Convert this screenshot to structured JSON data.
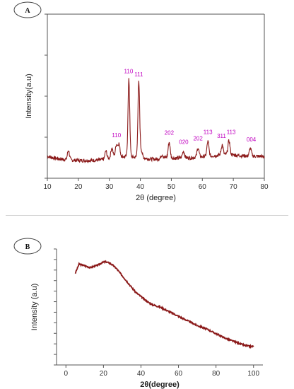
{
  "colors": {
    "series": "#8b1a1a",
    "peak_labels": "#c000c0",
    "axis": "#555555"
  },
  "chart_data": [
    {
      "panel": "A",
      "type": "line",
      "xlabel": "2θ (degree)",
      "ylabel": "Intensity(a.u)",
      "xlim": [
        10,
        80
      ],
      "ylim": [
        0,
        100
      ],
      "xticks": [
        10,
        20,
        30,
        40,
        50,
        60,
        70,
        80
      ],
      "grid": false,
      "baseline": [
        [
          10,
          13.4
        ],
        [
          12,
          12.4
        ],
        [
          14,
          11.8
        ],
        [
          16,
          11.3
        ],
        [
          17,
          11.2
        ],
        [
          18,
          11.0
        ],
        [
          20,
          10.9
        ],
        [
          22,
          10.8
        ],
        [
          24,
          10.8
        ],
        [
          26,
          11.0
        ],
        [
          28,
          11.4
        ],
        [
          29,
          11.6
        ],
        [
          30,
          12.2
        ],
        [
          32,
          13.8
        ],
        [
          33,
          14.0
        ],
        [
          34,
          13.4
        ],
        [
          35,
          13.2
        ],
        [
          36,
          13.4
        ],
        [
          37,
          13.0
        ],
        [
          38,
          12.8
        ],
        [
          39,
          13.0
        ],
        [
          40,
          13.6
        ],
        [
          41,
          12.6
        ],
        [
          42,
          12.0
        ],
        [
          44,
          11.6
        ],
        [
          46,
          11.8
        ],
        [
          48,
          12.6
        ],
        [
          50,
          12.4
        ],
        [
          52,
          12.2
        ],
        [
          54,
          12.6
        ],
        [
          56,
          12.4
        ],
        [
          58,
          12.8
        ],
        [
          60,
          13.2
        ],
        [
          62,
          13.4
        ],
        [
          64,
          13.8
        ],
        [
          66,
          14.2
        ],
        [
          68,
          14.6
        ],
        [
          70,
          14.2
        ],
        [
          72,
          13.8
        ],
        [
          74,
          13.6
        ],
        [
          76,
          13.6
        ],
        [
          78,
          13.4
        ],
        [
          80,
          13.2
        ]
      ],
      "peaks": [
        {
          "x": 16.8,
          "y": 17.0
        },
        {
          "x": 28.9,
          "y": 16.5
        },
        {
          "x": 30.8,
          "y": 18.5
        },
        {
          "x": 32.3,
          "y": 20.4
        },
        {
          "x": 33.1,
          "y": 21.0
        },
        {
          "x": 36.3,
          "y": 60.0
        },
        {
          "x": 39.5,
          "y": 58.3
        },
        {
          "x": 40.3,
          "y": 17.0
        },
        {
          "x": 47.0,
          "y": 14.5
        },
        {
          "x": 49.3,
          "y": 22.0
        },
        {
          "x": 53.9,
          "y": 16.5
        },
        {
          "x": 58.6,
          "y": 18.6
        },
        {
          "x": 61.8,
          "y": 22.4
        },
        {
          "x": 66.4,
          "y": 20.3
        },
        {
          "x": 68.6,
          "y": 23.0
        },
        {
          "x": 75.5,
          "y": 18.2
        }
      ],
      "annotations": [
        {
          "text": "110",
          "x": 32.3,
          "y": 25.0
        },
        {
          "text": "110",
          "x": 36.2,
          "y": 64.0
        },
        {
          "text": "111",
          "x": 39.5,
          "y": 62.0
        },
        {
          "text": "202",
          "x": 49.3,
          "y": 26.5
        },
        {
          "text": "020",
          "x": 54.0,
          "y": 21.0
        },
        {
          "text": "202",
          "x": 58.6,
          "y": 23.0
        },
        {
          "text": "113",
          "x": 61.8,
          "y": 27.0
        },
        {
          "text": "311",
          "x": 66.2,
          "y": 24.5
        },
        {
          "text": "113",
          "x": 69.3,
          "y": 27.0
        },
        {
          "text": "004",
          "x": 75.8,
          "y": 22.5
        }
      ]
    },
    {
      "panel": "B",
      "type": "line",
      "xlabel": "2θ(degree)",
      "ylabel": "Intensity (a.u)",
      "xlim": [
        -5,
        105
      ],
      "ylim": [
        0,
        100
      ],
      "xticks": [
        0,
        20,
        40,
        60,
        80,
        100
      ],
      "grid": false,
      "points": [
        [
          5,
          79
        ],
        [
          7,
          87
        ],
        [
          9,
          86
        ],
        [
          11,
          85
        ],
        [
          13,
          84
        ],
        [
          15,
          85
        ],
        [
          17,
          86
        ],
        [
          19,
          88
        ],
        [
          21,
          89
        ],
        [
          23,
          88
        ],
        [
          25,
          86
        ],
        [
          27,
          83
        ],
        [
          29,
          79
        ],
        [
          31,
          75
        ],
        [
          33,
          71
        ],
        [
          35,
          67
        ],
        [
          37,
          63
        ],
        [
          40,
          59
        ],
        [
          43,
          55
        ],
        [
          46,
          52
        ],
        [
          50,
          50
        ],
        [
          55,
          46
        ],
        [
          60,
          42
        ],
        [
          65,
          38
        ],
        [
          70,
          34
        ],
        [
          75,
          31
        ],
        [
          80,
          27
        ],
        [
          85,
          23
        ],
        [
          90,
          20
        ],
        [
          95,
          17
        ],
        [
          98,
          16
        ],
        [
          100,
          16
        ]
      ]
    }
  ]
}
